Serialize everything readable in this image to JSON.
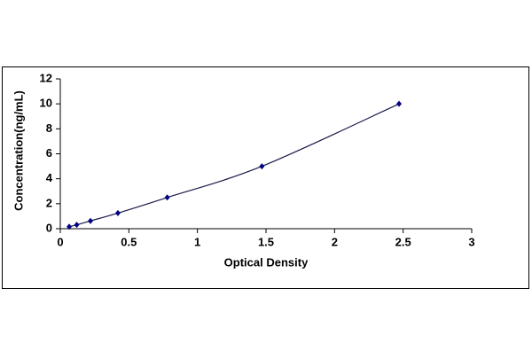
{
  "chart_data": {
    "type": "scatter",
    "x_label": "Optical Density",
    "y_label": "Concentration(ng/mL)",
    "x": [
      0.065,
      0.12,
      0.22,
      0.42,
      0.78,
      1.47,
      2.47
    ],
    "values": [
      0.156,
      0.312,
      0.625,
      1.25,
      2.5,
      5,
      10
    ],
    "color": "#000080",
    "line_color": "#1a1a4a",
    "xlim": [
      0,
      3
    ],
    "xticks": [
      0,
      0.5,
      1,
      1.5,
      2,
      2.5,
      3
    ],
    "ylim": [
      0,
      12
    ],
    "yticks": [
      0,
      2,
      4,
      6,
      8,
      10,
      12
    ],
    "grid": false
  }
}
